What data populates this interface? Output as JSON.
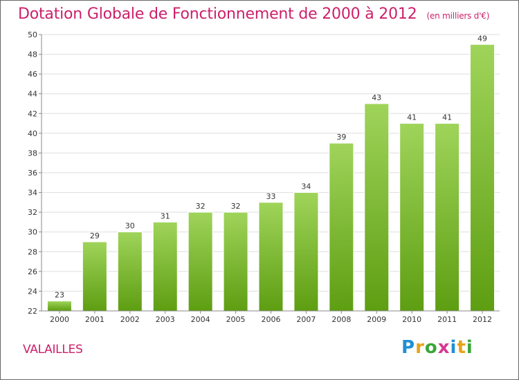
{
  "header": {
    "title": "Dotation Globale de Fonctionnement de 2000 à 2012",
    "subtitle": "(en milliers d'€)"
  },
  "footer": {
    "commune": "VALAILLES",
    "logo": "Proxiti"
  },
  "colors": {
    "accent": "#cc1f6a",
    "bar_light": "#9fd45a",
    "bar_dark": "#5e9e12",
    "grid": "#dddddd"
  },
  "chart_data": {
    "type": "bar",
    "categories": [
      "2000",
      "2001",
      "2002",
      "2003",
      "2004",
      "2005",
      "2006",
      "2007",
      "2008",
      "2009",
      "2010",
      "2011",
      "2012"
    ],
    "values": [
      23,
      29,
      30,
      31,
      32,
      32,
      33,
      34,
      39,
      43,
      41,
      41,
      49
    ],
    "ylim": [
      22,
      50
    ],
    "yticks": [
      22,
      24,
      26,
      28,
      30,
      32,
      34,
      36,
      38,
      40,
      42,
      44,
      46,
      48,
      50
    ],
    "grid": true
  }
}
